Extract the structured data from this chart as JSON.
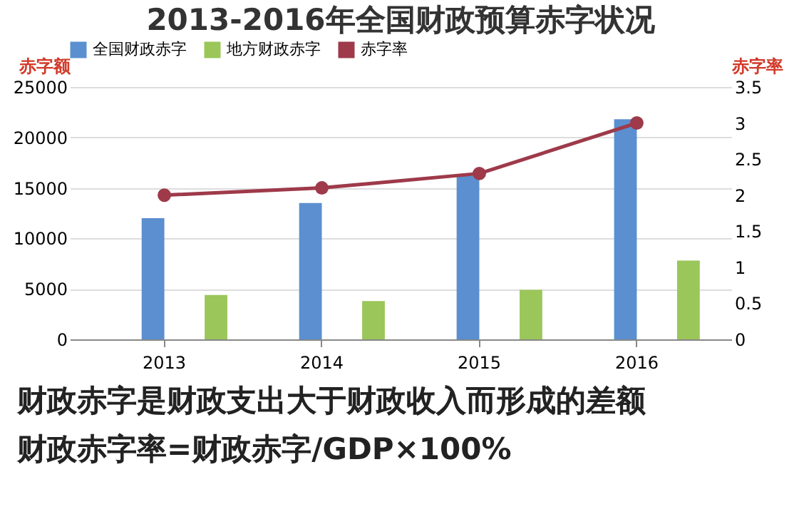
{
  "chart_data": {
    "type": "bar",
    "title": "2013-2016年全国财政预算赤字状况",
    "ylabel": "赤字额",
    "y2label": "赤字率",
    "categories": [
      "2013",
      "2014",
      "2015",
      "2016"
    ],
    "series": [
      {
        "name": "全国财政赤字",
        "color": "#5b8fd0",
        "values": [
          12000,
          13500,
          16200,
          21800
        ]
      },
      {
        "name": "地方财政赤字",
        "color": "#9bc65a",
        "values": [
          4400,
          3800,
          4900,
          7800
        ]
      },
      {
        "name": "赤字率",
        "type": "line",
        "axis": "y2",
        "color": "#9e3a4a",
        "values": [
          2.0,
          2.1,
          2.3,
          3.0
        ]
      }
    ],
    "ylim": [
      0,
      25000
    ],
    "yticks": [
      0,
      5000,
      10000,
      15000,
      20000,
      25000
    ],
    "y2lim": [
      0,
      3.5
    ],
    "y2ticks": [
      0,
      0.5,
      1,
      1.5,
      2,
      2.5,
      3,
      3.5
    ],
    "grid": "y",
    "legend": "top",
    "marker": "circle",
    "annotations": [
      "财政赤字是财政支出大于财政收入而形成的差额",
      "财政赤字率=财政赤字/GDP×100%"
    ]
  }
}
